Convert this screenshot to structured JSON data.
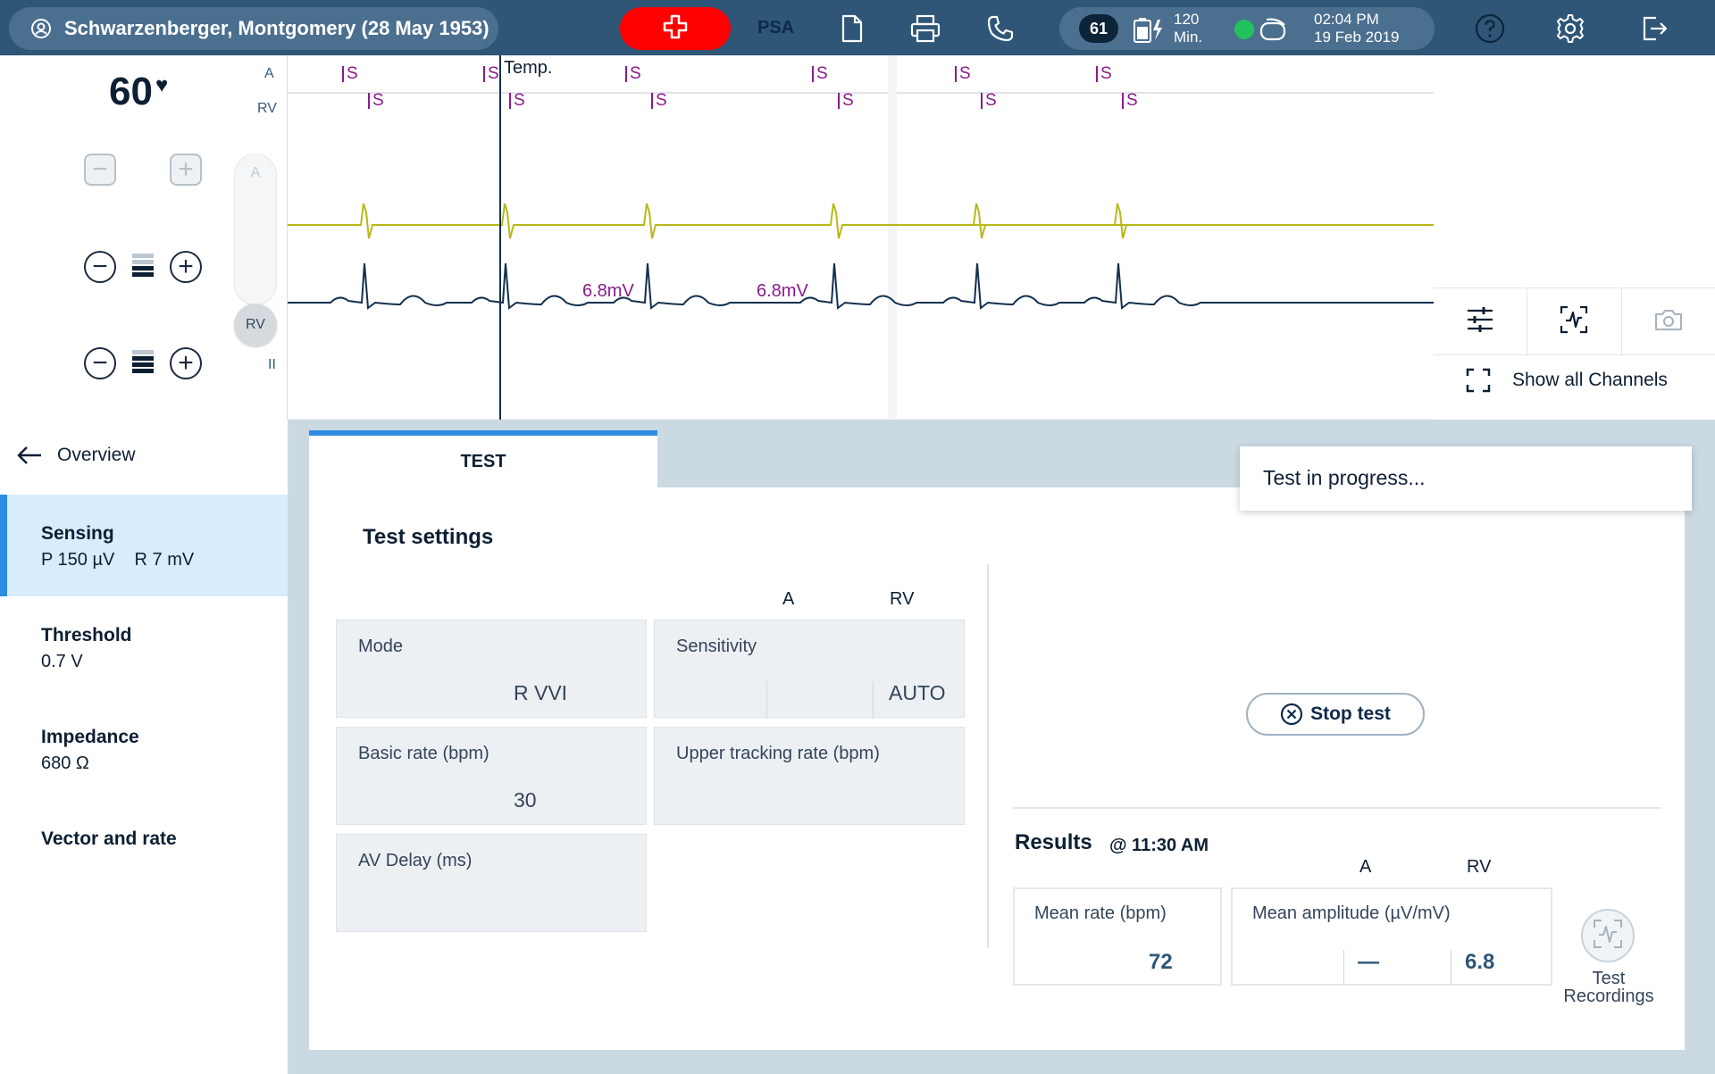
{
  "header": {
    "patient": "Schwarzenberger, Montgomery (28 May 1953)",
    "mode": "PSA",
    "counter": "61",
    "battery_minutes": "120",
    "battery_unit": "Min.",
    "time": "02:04 PM",
    "date": "19 Feb 2019"
  },
  "ecg": {
    "heart_rate": "60",
    "channels": {
      "a": "A",
      "rv": "RV",
      "ii": "II"
    },
    "slider_a": "A",
    "slider_rv": "RV",
    "temp_marker": "Temp.",
    "sense_marker": "S",
    "amplitude_labels": [
      "6.8mV",
      "6.8mV"
    ],
    "colors": {
      "rv_trace": "#b8b81a",
      "ecg_trace": "#14304e",
      "markers": "#8b1a8b"
    }
  },
  "tools": {
    "show_all_channels": "Show all Channels",
    "icons": [
      "sliders-icon",
      "waveform-capture-icon",
      "camera-icon",
      "expand-icon"
    ]
  },
  "nav": {
    "back": "Overview",
    "items": [
      {
        "title": "Sensing",
        "value": "P 150 µV    R 7 mV",
        "active": true
      },
      {
        "title": "Threshold",
        "value": "0.7 V"
      },
      {
        "title": "Impedance",
        "value": "680 Ω"
      },
      {
        "title": "Vector and rate",
        "value": ""
      }
    ]
  },
  "tab": "TEST",
  "status_toast": "Test in progress...",
  "settings": {
    "title": "Test settings",
    "col_a": "A",
    "col_rv": "RV",
    "mode": {
      "label": "Mode",
      "value": "R VVI"
    },
    "sensitivity": {
      "label": "Sensitivity",
      "a": "",
      "rv": "AUTO"
    },
    "basic_rate": {
      "label": "Basic rate (bpm)",
      "value": "30"
    },
    "upper_tracking": {
      "label": "Upper tracking rate (bpm)",
      "value": ""
    },
    "av_delay": {
      "label": "AV Delay (ms)",
      "value": ""
    }
  },
  "stop_button": "Stop test",
  "results": {
    "title": "Results",
    "time": "@ 11:30 AM",
    "col_a": "A",
    "col_rv": "RV",
    "mean_rate": {
      "label": "Mean rate (bpm)",
      "value": "72"
    },
    "mean_amplitude": {
      "label": "Mean amplitude (µV/mV)",
      "a": "—",
      "rv": "6.8"
    },
    "recordings": "Test Recordings"
  },
  "colors": {
    "header_bg": "#2f5677",
    "accent": "#2d8de0",
    "emergency": "#ff0000",
    "status_ok": "#21c25e"
  }
}
